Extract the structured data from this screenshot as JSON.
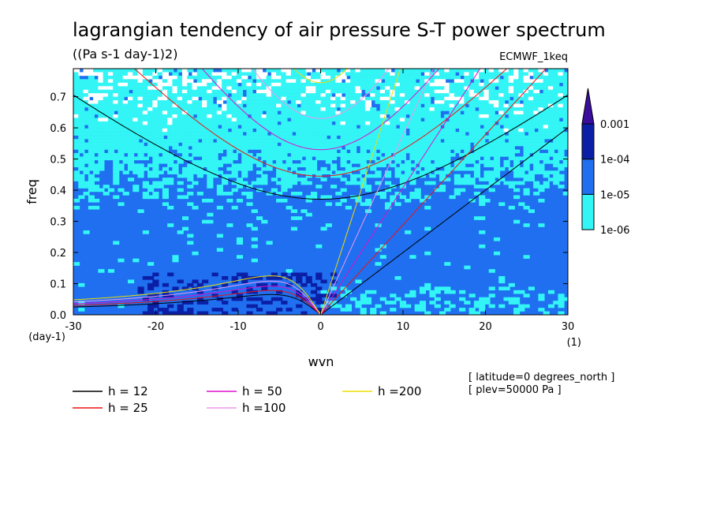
{
  "chart_data": {
    "type": "heatmap",
    "title": "lagrangian tendency of air pressure S-T power spectrum",
    "subtitle": "((Pa s-1 day-1)2)",
    "dataset_label": "ECMWF_1keq",
    "xlabel": "wvn",
    "ylabel": "freq",
    "x_unit": "(1)",
    "y_unit": "(day-1)",
    "xlim": [
      -30,
      30
    ],
    "ylim": [
      0,
      0.79
    ],
    "x_ticks": [
      -30,
      -20,
      -10,
      0,
      10,
      20,
      30
    ],
    "x_tick_labels": [
      "-30",
      "-20",
      "-10",
      "0",
      "10",
      "20",
      "30"
    ],
    "y_ticks": [
      0.0,
      0.1,
      0.2,
      0.3,
      0.4,
      0.5,
      0.6,
      0.7
    ],
    "y_tick_labels": [
      "0.0",
      "0.1",
      "0.2",
      "0.3",
      "0.4",
      "0.5",
      "0.6",
      "0.7"
    ],
    "colorbar": {
      "labels": [
        "0.001",
        "1e-04",
        "1e-05",
        "1e-06"
      ],
      "colors": [
        "#3a0d9c",
        "#0b1fa6",
        "#1f6ff0",
        "#33f5f5"
      ]
    },
    "field_colors": {
      "white": "#ffffff",
      "cyan": "#33f5f5",
      "lightblue": "#1f6ff0",
      "darkblue": "#0b1fa6"
    },
    "annotations": [
      "[ latitude=0 degrees_north ]",
      "[ plev=50000 Pa ]"
    ],
    "series": [
      {
        "name": "h = 12",
        "h": 12,
        "color": "#000000",
        "ig_min_freq": 0.371,
        "kelvin_slope": 0.02,
        "rossby_peak": 0.065
      },
      {
        "name": "h = 25",
        "h": 25,
        "color": "#ee1111",
        "ig_min_freq": 0.445,
        "kelvin_slope": 0.0289,
        "rossby_peak": 0.078
      },
      {
        "name": "h = 50",
        "h": 50,
        "color": "#dd11cc",
        "ig_min_freq": 0.53,
        "kelvin_slope": 0.0408,
        "rossby_peak": 0.092
      },
      {
        "name": "h =100",
        "h": 100,
        "color": "#ee99ee",
        "ig_min_freq": 0.63,
        "kelvin_slope": 0.0577,
        "rossby_peak": 0.108
      },
      {
        "name": "h =200",
        "h": 200,
        "color": "#eedd00",
        "ig_min_freq": 0.745,
        "kelvin_slope": 0.0817,
        "rossby_peak": 0.125
      }
    ]
  }
}
